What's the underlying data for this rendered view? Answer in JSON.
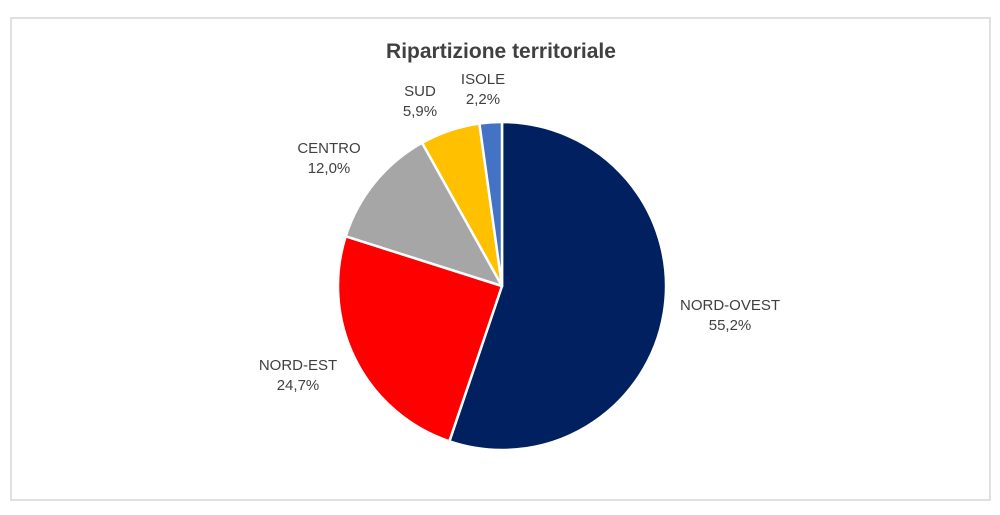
{
  "window": {
    "background_color": "#ffffff",
    "frame_border_color": "#e0e0e0"
  },
  "chart_data": {
    "type": "pie",
    "title": "Ripartizione territoriale",
    "categories": [
      "NORD-OVEST",
      "NORD-EST",
      "CENTRO",
      "SUD",
      "ISOLE"
    ],
    "values": [
      55.2,
      24.7,
      12.0,
      5.9,
      2.2
    ],
    "value_labels": [
      "55,2%",
      "24,7%",
      "12,0%",
      "5,9%",
      "2,2%"
    ],
    "colors": [
      "#002060",
      "#ff0000",
      "#a6a6a6",
      "#ffc000",
      "#4472c4"
    ],
    "start_angle_deg": 0,
    "direction": "clockwise",
    "legend": "none",
    "label_position": "outside",
    "slice_border_color": "#ffffff",
    "text_color": "#404040"
  }
}
